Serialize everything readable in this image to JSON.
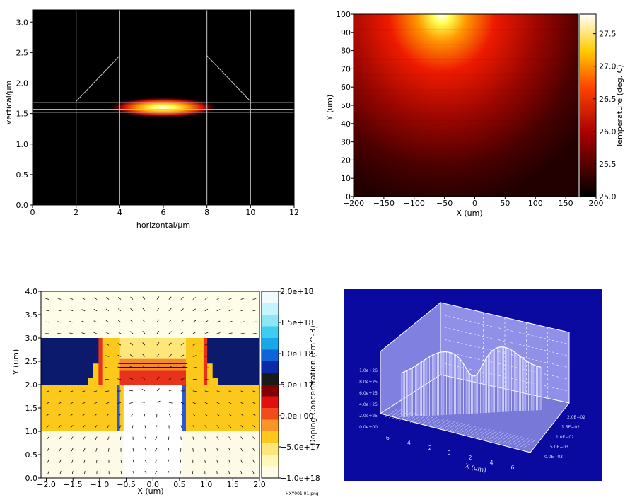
{
  "colors": {
    "hot_dark": "#000000",
    "hot_red": "#ff2a00",
    "hot_yellow": "#ffff40",
    "hot_white": "#ffffff",
    "panel4_bg": "#0a0aa0",
    "panel4_surface": "#a0a0f0"
  },
  "chart_data": [
    {
      "type": "heatmap",
      "name": "optical-mode-profile",
      "xlabel": "horizontal/µm",
      "ylabel": "vertical/µm",
      "xlim": [
        0,
        12
      ],
      "ylim": [
        0,
        3.2
      ],
      "xticks": [
        "0",
        "2",
        "4",
        "6",
        "8",
        "10",
        "12"
      ],
      "yticks": [
        "0.0",
        "0.5",
        "1.0",
        "1.5",
        "2.0",
        "2.5",
        "3.0"
      ],
      "mode_center": [
        6,
        1.6
      ],
      "structure_lines": {
        "verticals": [
          2,
          4,
          8,
          10
        ],
        "horizontals": [
          1.52,
          1.57,
          1.64,
          1.68
        ],
        "slopes": [
          [
            [
              2,
              1.7
            ],
            [
              4,
              2.45
            ]
          ],
          [
            [
              8,
              2.45
            ],
            [
              10,
              1.7
            ]
          ]
        ]
      },
      "grid": false
    },
    {
      "type": "heatmap",
      "name": "temperature-map",
      "xlabel": "X (um)",
      "ylabel": "Y (um)",
      "xlim": [
        -200,
        200
      ],
      "ylim": [
        0,
        100
      ],
      "xticks": [
        "−200",
        "−150",
        "−100",
        "−50",
        "0",
        "50",
        "100",
        "150",
        "200"
      ],
      "yticks": [
        "0",
        "10",
        "20",
        "30",
        "40",
        "50",
        "60",
        "70",
        "80",
        "90",
        "100"
      ],
      "colorbar_label": "Temperature (deg. C)",
      "colorbar_ticks": [
        "25.0",
        "25.5",
        "26.0",
        "26.5",
        "27.0",
        "27.5"
      ],
      "colorbar_range": [
        25.0,
        27.8
      ],
      "hotspot": [
        -20,
        100
      ],
      "grid": false
    },
    {
      "type": "heatmap",
      "name": "doping-concentration",
      "xlabel": "X (um)",
      "ylabel": "Y (um)",
      "xlim": [
        -2.1,
        2.0
      ],
      "ylim": [
        0,
        4.0
      ],
      "xticks": [
        "−2.0",
        "−1.5",
        "−1.0",
        "−0.5",
        "0.0",
        "0.5",
        "1.0",
        "1.5",
        "2.0"
      ],
      "yticks": [
        "0.0",
        "0.5",
        "1.0",
        "1.5",
        "2.0",
        "2.5",
        "3.0",
        "3.5",
        "4.0"
      ],
      "colorbar_label": "Doping Concentration (cm^-3)",
      "colorbar_ticks": [
        "2.0e+18",
        "1.5e+18",
        "1.0e+18",
        "5.0e+17",
        "0.0e+00",
        "−5.0e+17",
        "−1.0e+18"
      ],
      "footnote": "HXY001.01.png",
      "grid": false
    },
    {
      "type": "area",
      "name": "3d-surface",
      "xlabel": "X (um)",
      "xticks": [
        "−6",
        "−4",
        "−2",
        "0",
        "2",
        "4",
        "6"
      ],
      "zticks": [
        "0.0e+00",
        "2.0e+25",
        "4.0e+25",
        "6.0e+25",
        "8.0e+25",
        "1.0e+26"
      ],
      "side_ticks": [
        "0.0E−03",
        "5.0E−03",
        "1.0E−02",
        "1.5E−02",
        "2.0E−02"
      ],
      "grid": true
    }
  ]
}
